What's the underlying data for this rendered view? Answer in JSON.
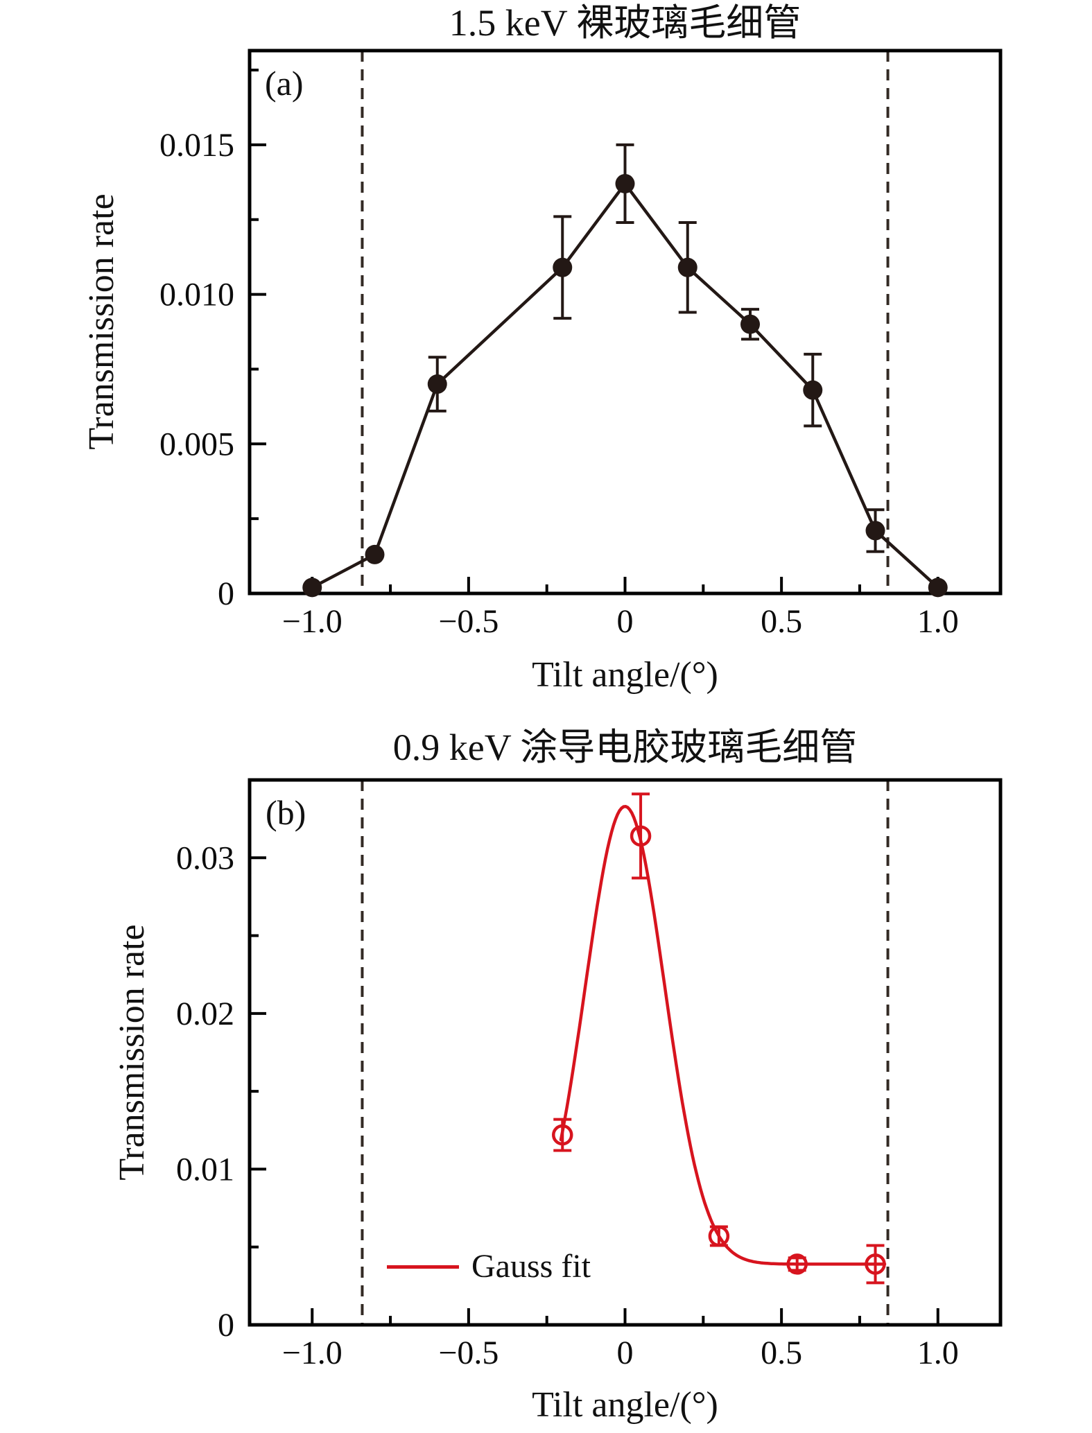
{
  "page": {
    "background": "#ffffff",
    "ink_color": "#231815",
    "accent_red": "#d7141e"
  },
  "chart_data": [
    {
      "id": "a",
      "type": "line",
      "panel_label": "(a)",
      "title": "1.5 keV 裸玻璃毛细管",
      "xlabel": "Tilt angle/(°)",
      "ylabel": "Transmission rate",
      "xlim": [
        -1.2,
        1.2
      ],
      "ylim": [
        0,
        0.01815
      ],
      "x_major_ticks": [
        -1.0,
        -0.5,
        0,
        0.5,
        1.0
      ],
      "x_tick_labels": [
        "−1.0",
        "−0.5",
        "0",
        "0.5",
        "1.0"
      ],
      "x_minor_ticks": [
        -0.75,
        -0.25,
        0.25,
        0.75
      ],
      "y_major_ticks": [
        0,
        0.005,
        0.01,
        0.015
      ],
      "y_tick_labels": [
        "0",
        "0.005",
        "0.010",
        "0.015"
      ],
      "y_minor_ticks": [
        0.0025,
        0.0075,
        0.0125,
        0.0175
      ],
      "dashed_guides_x": [
        -0.84,
        0.84
      ],
      "grid": false,
      "series": [
        {
          "name": "1.5 keV bare glass capillary",
          "marker": "filled-circle",
          "connect": true,
          "color": "#231815",
          "x": [
            -1.0,
            -0.8,
            -0.6,
            -0.2,
            0.0,
            0.2,
            0.4,
            0.6,
            0.8,
            1.0
          ],
          "y": [
            0.0002,
            0.0013,
            0.007,
            0.0109,
            0.0137,
            0.0109,
            0.009,
            0.0068,
            0.0021,
            0.0002
          ],
          "yerr": [
            0,
            0,
            0.0009,
            0.0017,
            0.0013,
            0.0015,
            0.0005,
            0.0012,
            0.0007,
            0
          ]
        }
      ],
      "legend": null
    },
    {
      "id": "b",
      "type": "scatter+fit",
      "panel_label": "(b)",
      "title": "0.9 keV 涂导电胶玻璃毛细管",
      "xlabel": "Tilt angle/(°)",
      "ylabel": "Transmission rate",
      "xlim": [
        -1.2,
        1.2
      ],
      "ylim": [
        0,
        0.035
      ],
      "x_major_ticks": [
        -1.0,
        -0.5,
        0,
        0.5,
        1.0
      ],
      "x_tick_labels": [
        "−1.0",
        "−0.5",
        "0",
        "0.5",
        "1.0"
      ],
      "x_minor_ticks": [
        -0.75,
        -0.25,
        0.25,
        0.75
      ],
      "y_major_ticks": [
        0,
        0.01,
        0.02,
        0.03
      ],
      "y_tick_labels": [
        "0",
        "0.01",
        "0.02",
        "0.03"
      ],
      "y_minor_ticks": [
        0.005,
        0.015,
        0.025
      ],
      "dashed_guides_x": [
        -0.84,
        0.84
      ],
      "grid": false,
      "series": [
        {
          "name": "measured points",
          "marker": "open-circle",
          "connect": false,
          "color": "#d7141e",
          "x": [
            -0.2,
            0.05,
            0.3,
            0.55,
            0.8
          ],
          "y": [
            0.0122,
            0.0314,
            0.0057,
            0.0039,
            0.0039
          ],
          "yerr": [
            0.001,
            0.0027,
            0.0006,
            0.0004,
            0.0012
          ]
        },
        {
          "name": "Gauss fit",
          "curve": "gauss",
          "color": "#d7141e",
          "baseline": 0.0039,
          "amplitude": 0.0294,
          "center": 0.0,
          "sigma": 0.127,
          "x_range": [
            -0.205,
            0.83
          ]
        }
      ],
      "legend": {
        "label": "Gauss fit"
      }
    }
  ]
}
